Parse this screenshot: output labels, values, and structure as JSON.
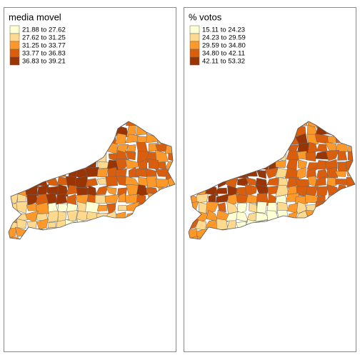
{
  "panels": [
    {
      "title": "media movel",
      "legend": [
        {
          "label": "21.88 to 27.62",
          "color": "#ffffd4"
        },
        {
          "label": "27.62 to 31.25",
          "color": "#fed98e"
        },
        {
          "label": "31.25 to 33.77",
          "color": "#fe9929"
        },
        {
          "label": "33.77 to 36.83",
          "color": "#d95f0e"
        },
        {
          "label": "36.83 to 39.21",
          "color": "#993404"
        }
      ]
    },
    {
      "title": "% votos",
      "legend": [
        {
          "label": "15.11 to 24.23",
          "color": "#ffffd4"
        },
        {
          "label": "24.23 to 29.59",
          "color": "#fed98e"
        },
        {
          "label": "29.59 to 34.80",
          "color": "#fe9929"
        },
        {
          "label": "34.80 to 42.11",
          "color": "#d95f0e"
        },
        {
          "label": "42.11 to 53.32",
          "color": "#993404"
        }
      ]
    }
  ]
}
